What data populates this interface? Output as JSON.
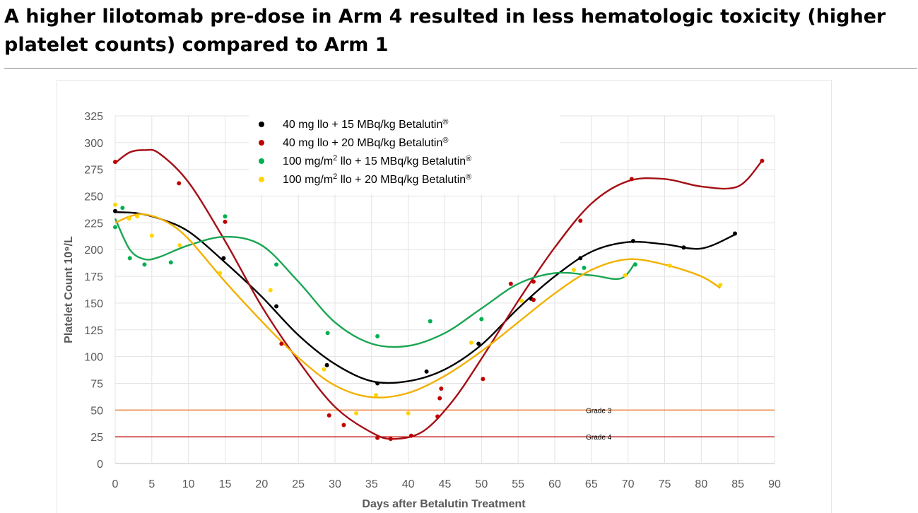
{
  "slide": {
    "title": "A higher lilotomab pre-dose in Arm 4 resulted in less hematologic toxicity (higher platelet counts) compared to Arm 1"
  },
  "chart_data": {
    "type": "scatter",
    "xlabel": "Days after Betalutin Treatment",
    "ylabel": "Platelet Count 10⁹/L",
    "xlim": [
      0,
      90
    ],
    "ylim": [
      0,
      325
    ],
    "x_ticks": [
      "0",
      "5",
      "10",
      "15",
      "20",
      "25",
      "30",
      "35",
      "40",
      "45",
      "50",
      "55",
      "60",
      "65",
      "70",
      "75",
      "80",
      "85",
      "90"
    ],
    "y_ticks": [
      "0",
      "25",
      "50",
      "75",
      "100",
      "125",
      "150",
      "175",
      "200",
      "225",
      "250",
      "275",
      "300",
      "325"
    ],
    "grid": true,
    "legend_position": "top-center",
    "reference_lines": [
      {
        "label": "Grade 3",
        "y": 50,
        "color": "#ed7d31"
      },
      {
        "label": "Grade 4",
        "y": 25,
        "color": "#c00000"
      }
    ],
    "series": [
      {
        "name_pre": "40 mg llo + 15 MBq/kg Betalutin",
        "name_sup": "",
        "name_post": "",
        "registered": "®",
        "marker_color": "#000000",
        "line_color": "#000000",
        "points": [
          [
            0,
            236
          ],
          [
            14.8,
            192
          ],
          [
            22,
            147
          ],
          [
            28.9,
            92
          ],
          [
            35.8,
            75
          ],
          [
            42.5,
            86
          ],
          [
            49.6,
            112
          ],
          [
            56.8,
            154
          ],
          [
            63.5,
            192
          ],
          [
            70.7,
            208
          ],
          [
            77.6,
            202
          ],
          [
            84.6,
            215
          ]
        ],
        "trend": [
          [
            0,
            235
          ],
          [
            3,
            234
          ],
          [
            6,
            229
          ],
          [
            10,
            217
          ],
          [
            15,
            188
          ],
          [
            20,
            156
          ],
          [
            25,
            120
          ],
          [
            30,
            93
          ],
          [
            35,
            77
          ],
          [
            40,
            77
          ],
          [
            45,
            88
          ],
          [
            50,
            111
          ],
          [
            55,
            145
          ],
          [
            60,
            175
          ],
          [
            65,
            198
          ],
          [
            70,
            207
          ],
          [
            75,
            205
          ],
          [
            80,
            201
          ],
          [
            84.6,
            214
          ]
        ]
      },
      {
        "name_pre": "40 mg llo + 20 MBq/kg Betalutin",
        "name_sup": "",
        "name_post": "",
        "registered": "®",
        "marker_color": "#c00000",
        "line_color": "#a50f15",
        "points": [
          [
            0,
            282
          ],
          [
            8.7,
            262
          ],
          [
            15,
            226
          ],
          [
            22.7,
            112
          ],
          [
            29.2,
            45
          ],
          [
            31.2,
            36
          ],
          [
            35.8,
            24
          ],
          [
            37.6,
            23
          ],
          [
            40.4,
            26
          ],
          [
            44,
            44
          ],
          [
            44.3,
            61
          ],
          [
            44.5,
            70
          ],
          [
            50.2,
            79
          ],
          [
            54,
            168
          ],
          [
            57.1,
            153
          ],
          [
            57.1,
            170
          ],
          [
            63.5,
            227
          ],
          [
            70.5,
            266
          ],
          [
            88.3,
            283
          ]
        ],
        "trend": [
          [
            0,
            281
          ],
          [
            2,
            291
          ],
          [
            4,
            293
          ],
          [
            6,
            290
          ],
          [
            10,
            263
          ],
          [
            15,
            208
          ],
          [
            20,
            147
          ],
          [
            25,
            96
          ],
          [
            30,
            53
          ],
          [
            35,
            29
          ],
          [
            38,
            23
          ],
          [
            42,
            30
          ],
          [
            46,
            58
          ],
          [
            50,
            98
          ],
          [
            55,
            152
          ],
          [
            60,
            202
          ],
          [
            65,
            243
          ],
          [
            70,
            264
          ],
          [
            75,
            266
          ],
          [
            80,
            259
          ],
          [
            85,
            259
          ],
          [
            88.3,
            283
          ]
        ]
      },
      {
        "name_pre": "100 mg/m",
        "name_sup": "2",
        "name_post": " llo + 15 MBq/kg Betalutin",
        "registered": "®",
        "marker_color": "#00b050",
        "line_color": "#1aa653",
        "points": [
          [
            0,
            221
          ],
          [
            1,
            239
          ],
          [
            2,
            192
          ],
          [
            4,
            186
          ],
          [
            7.6,
            188
          ],
          [
            15,
            231
          ],
          [
            22,
            186
          ],
          [
            29,
            122
          ],
          [
            35.8,
            119
          ],
          [
            43,
            133
          ],
          [
            50,
            135
          ],
          [
            64,
            183
          ],
          [
            71,
            186
          ]
        ],
        "trend": [
          [
            0,
            229
          ],
          [
            2,
            200
          ],
          [
            4,
            191
          ],
          [
            6,
            193
          ],
          [
            10,
            204
          ],
          [
            15,
            212
          ],
          [
            20,
            204
          ],
          [
            25,
            170
          ],
          [
            30,
            132
          ],
          [
            35,
            112
          ],
          [
            40,
            110
          ],
          [
            45,
            122
          ],
          [
            50,
            145
          ],
          [
            55,
            168
          ],
          [
            60,
            178
          ],
          [
            65,
            176
          ],
          [
            69,
            173
          ],
          [
            71,
            188
          ]
        ]
      },
      {
        "name_pre": "100 mg/m",
        "name_sup": "2",
        "name_post": " llo + 20 MBq/kg Betalutin",
        "registered": "®",
        "marker_color": "#ffd500",
        "line_color": "#f2b100",
        "points": [
          [
            0,
            242
          ],
          [
            1.9,
            229
          ],
          [
            3,
            231
          ],
          [
            5,
            213
          ],
          [
            8.8,
            204
          ],
          [
            14.3,
            178
          ],
          [
            21.2,
            162
          ],
          [
            28.5,
            88
          ],
          [
            32.9,
            47
          ],
          [
            35.6,
            64
          ],
          [
            40,
            47
          ],
          [
            48.6,
            113
          ],
          [
            55.5,
            152
          ],
          [
            62.6,
            181
          ],
          [
            69.6,
            176
          ],
          [
            75.7,
            185
          ],
          [
            82.6,
            167
          ]
        ],
        "trend": [
          [
            0,
            225
          ],
          [
            2,
            231
          ],
          [
            4,
            233
          ],
          [
            7,
            226
          ],
          [
            10,
            210
          ],
          [
            15,
            170
          ],
          [
            20,
            133
          ],
          [
            25,
            99
          ],
          [
            30,
            73
          ],
          [
            35,
            62
          ],
          [
            40,
            66
          ],
          [
            45,
            82
          ],
          [
            50,
            105
          ],
          [
            55,
            132
          ],
          [
            60,
            159
          ],
          [
            65,
            181
          ],
          [
            70,
            191
          ],
          [
            75,
            186
          ],
          [
            80,
            175
          ],
          [
            82.6,
            164
          ]
        ]
      }
    ]
  }
}
